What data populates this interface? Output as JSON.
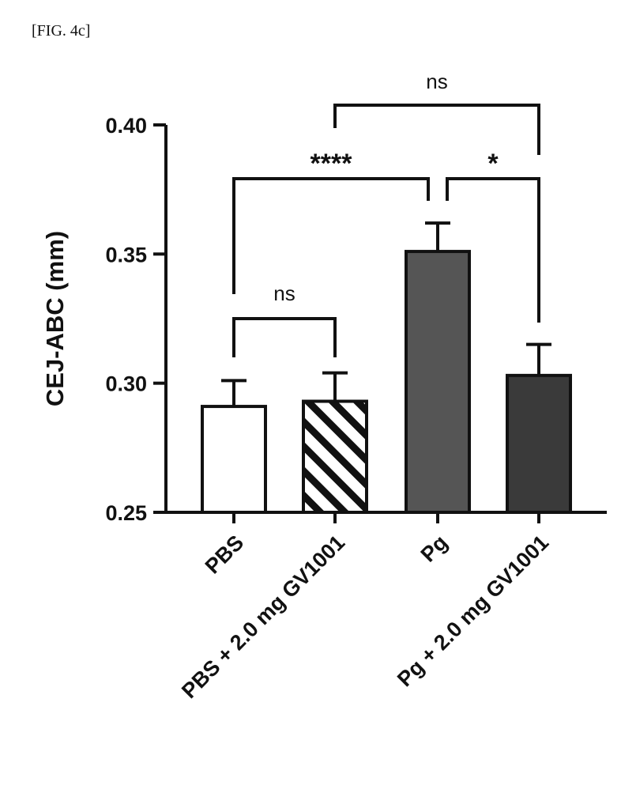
{
  "figure_label": "[FIG. 4c]",
  "chart_data": {
    "type": "bar",
    "categories": [
      "PBS",
      "PBS + 2.0 mg GV1001",
      "Pg",
      "Pg + 2.0 mg GV1001"
    ],
    "values": [
      0.291,
      0.293,
      0.351,
      0.303
    ],
    "errors": [
      0.01,
      0.011,
      0.011,
      0.012
    ],
    "fills": [
      "white",
      "hatched",
      "#555555",
      "#3a3a3a"
    ],
    "ylabel": "CEJ-ABC (mm)",
    "xlabel": "",
    "ylim": [
      0.25,
      0.4
    ],
    "yticks": [
      {
        "value": 0.25,
        "label": "0.25"
      },
      {
        "value": 0.3,
        "label": "0.30"
      },
      {
        "value": 0.35,
        "label": "0.35"
      },
      {
        "value": 0.4,
        "label": "0.40"
      }
    ],
    "significance": [
      {
        "from": 0,
        "to": 1,
        "label": "ns"
      },
      {
        "from": 0,
        "to": 2,
        "label": "****"
      },
      {
        "from": 2,
        "to": 3,
        "label": "*"
      },
      {
        "from": 1,
        "to": 3,
        "label": "ns"
      }
    ],
    "grid": false
  }
}
